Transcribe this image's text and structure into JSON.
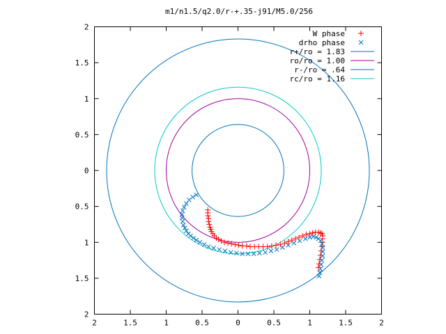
{
  "chart_data": {
    "type": "scatter",
    "title": "m1/n1.5/q2.0/r-+.35-j91/M5.0/256",
    "xlabel": "",
    "ylabel": "",
    "xlim": [
      -2,
      2
    ],
    "ylim": [
      -2,
      2
    ],
    "xticks": [
      -2,
      -1.5,
      -1,
      -0.5,
      0,
      0.5,
      1,
      1.5,
      2
    ],
    "yticks": [
      2,
      1.5,
      1,
      0.5,
      0,
      -0.5,
      -1,
      -1.5,
      -2
    ],
    "xtick_labels": [
      "2",
      "1.5",
      "1",
      "0.5",
      "0",
      "0.5",
      "1",
      "1.5",
      "2"
    ],
    "ytick_labels": [
      "2",
      "1.5",
      "1",
      "0.5",
      "0",
      "0.5",
      "1",
      "1.5",
      "2"
    ],
    "grid": false,
    "legend_position": "top-right",
    "circles": [
      {
        "label": "r+/ro = 1.83",
        "radius": 1.83,
        "color": "#0072bd"
      },
      {
        "label": "ro/ro = 1.00",
        "radius": 1.0,
        "color": "#a000a0"
      },
      {
        "label": "r-/ro = .64",
        "radius": 0.64,
        "color": "#0072bd"
      },
      {
        "label": "rc/ro = 1.16",
        "radius": 1.16,
        "color": "#00c8c8"
      }
    ],
    "series": [
      {
        "name": "W phase",
        "marker": "plus",
        "color": "#ff0000",
        "x": [
          -0.42,
          -0.42,
          -0.42,
          -0.41,
          -0.41,
          -0.4,
          -0.39,
          -0.38,
          -0.37,
          -0.35,
          -0.33,
          -0.3,
          -0.27,
          -0.23,
          -0.19,
          -0.14,
          -0.09,
          -0.04,
          0.01,
          0.06,
          0.12,
          0.17,
          0.23,
          0.29,
          0.35,
          0.41,
          0.47,
          0.53,
          0.59,
          0.65,
          0.7,
          0.75,
          0.8,
          0.85,
          0.9,
          0.95,
          1.0,
          1.04,
          1.08,
          1.12,
          1.15,
          1.17,
          1.18,
          1.18,
          1.18,
          1.17,
          1.16,
          1.15,
          1.14,
          1.13,
          1.12
        ],
        "y": [
          -0.55,
          -0.59,
          -0.63,
          -0.67,
          -0.71,
          -0.75,
          -0.79,
          -0.82,
          -0.85,
          -0.88,
          -0.91,
          -0.94,
          -0.96,
          -0.98,
          -1.0,
          -1.01,
          -1.02,
          -1.03,
          -1.04,
          -1.05,
          -1.05,
          -1.06,
          -1.06,
          -1.06,
          -1.06,
          -1.06,
          -1.05,
          -1.04,
          -1.03,
          -1.01,
          -0.99,
          -0.97,
          -0.95,
          -0.93,
          -0.91,
          -0.89,
          -0.88,
          -0.87,
          -0.86,
          -0.86,
          -0.87,
          -0.88,
          -0.91,
          -0.95,
          -1.0,
          -1.06,
          -1.12,
          -1.18,
          -1.24,
          -1.3,
          -1.35
        ]
      },
      {
        "name": "drho phase",
        "marker": "x",
        "color": "#0072bd",
        "x": [
          -0.58,
          -0.63,
          -0.68,
          -0.72,
          -0.75,
          -0.77,
          -0.78,
          -0.78,
          -0.77,
          -0.76,
          -0.74,
          -0.72,
          -0.69,
          -0.66,
          -0.62,
          -0.58,
          -0.53,
          -0.47,
          -0.41,
          -0.34,
          -0.26,
          -0.18,
          -0.1,
          -0.02,
          0.06,
          0.14,
          0.22,
          0.3,
          0.38,
          0.46,
          0.54,
          0.62,
          0.7,
          0.78,
          0.86,
          0.94,
          1.0,
          1.05,
          1.09,
          1.12,
          1.15,
          1.17,
          1.18,
          1.18,
          1.18,
          1.17,
          1.16,
          1.15,
          1.14,
          1.13
        ],
        "y": [
          -0.34,
          -0.37,
          -0.41,
          -0.46,
          -0.51,
          -0.56,
          -0.61,
          -0.66,
          -0.71,
          -0.76,
          -0.8,
          -0.84,
          -0.88,
          -0.91,
          -0.94,
          -0.97,
          -1.0,
          -1.03,
          -1.06,
          -1.08,
          -1.1,
          -1.12,
          -1.14,
          -1.15,
          -1.16,
          -1.16,
          -1.16,
          -1.15,
          -1.14,
          -1.12,
          -1.1,
          -1.07,
          -1.04,
          -1.01,
          -0.98,
          -0.95,
          -0.93,
          -0.92,
          -0.93,
          -0.95,
          -0.98,
          -1.02,
          -1.07,
          -1.13,
          -1.19,
          -1.25,
          -1.31,
          -1.37,
          -1.42,
          -1.47
        ]
      }
    ]
  }
}
